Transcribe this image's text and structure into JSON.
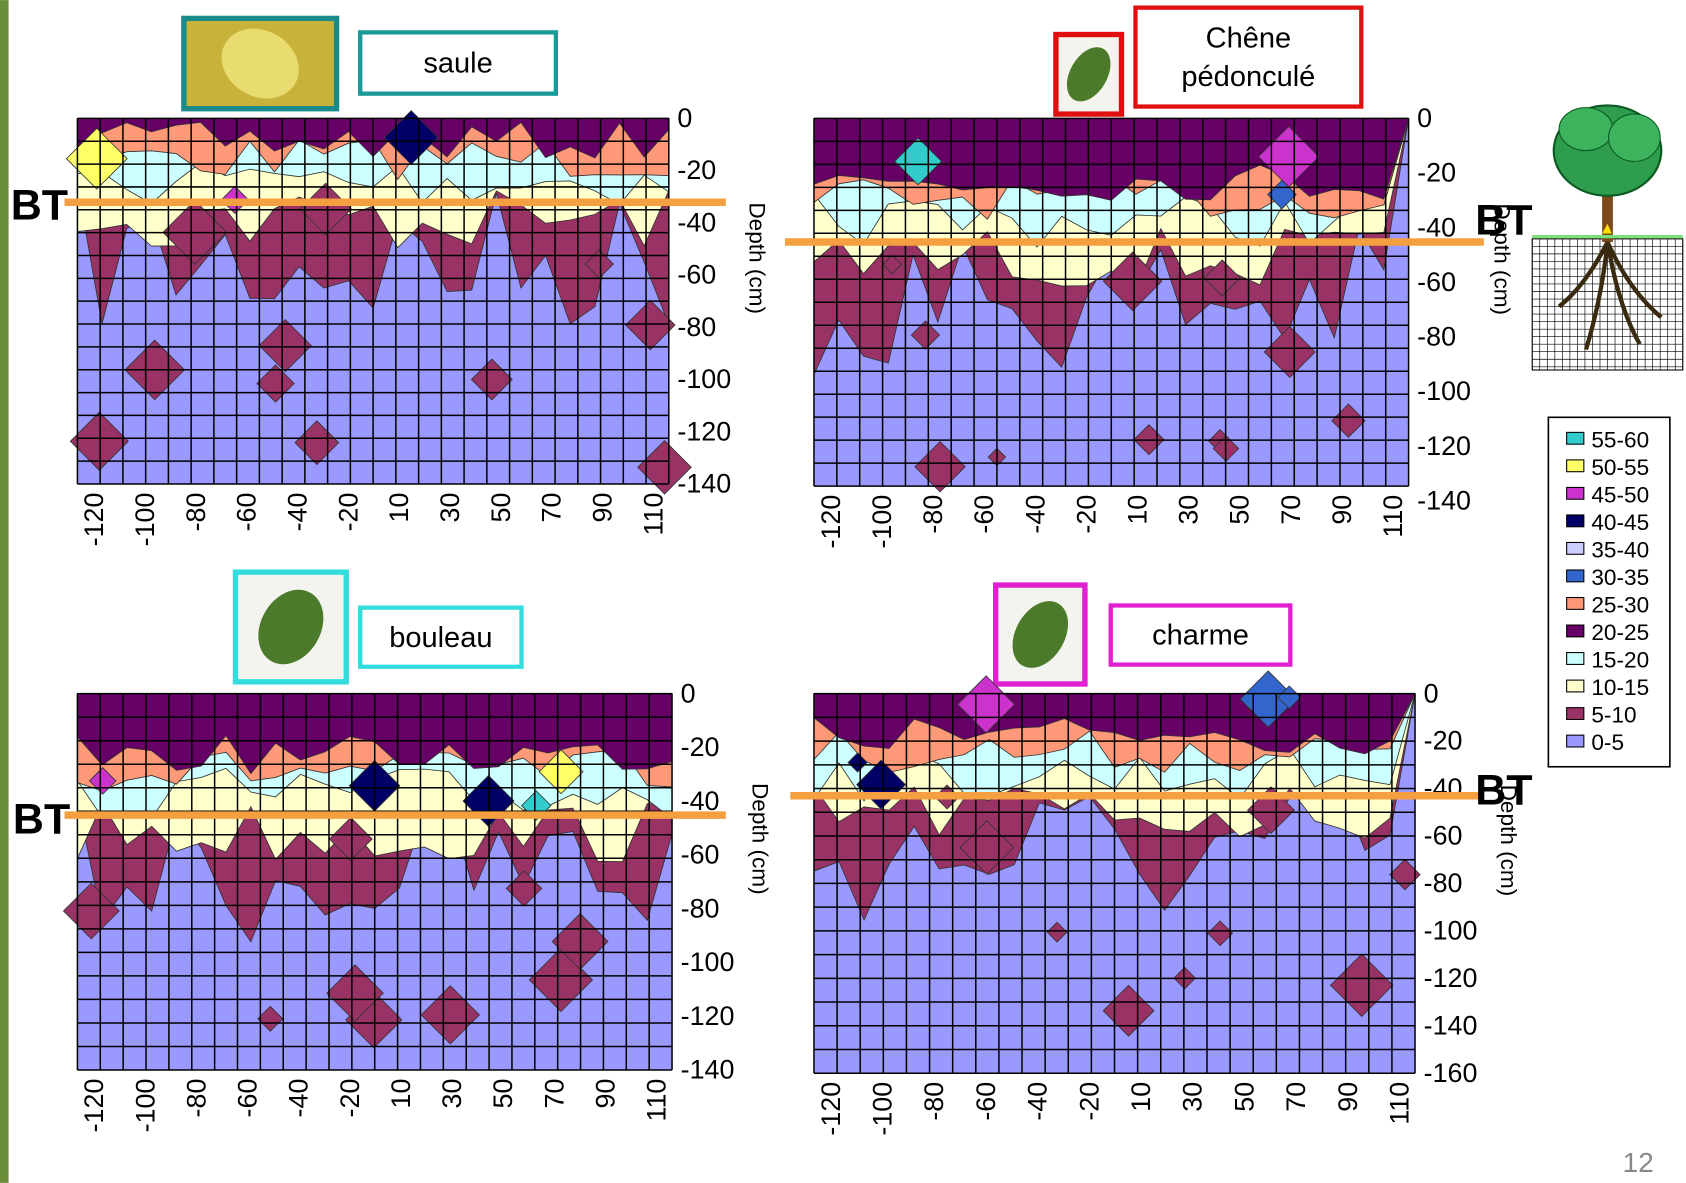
{
  "panels": [
    {
      "species": [
        "saule"
      ],
      "y_axis_label": "Depth (cm)",
      "bt_label": "BT",
      "y_ticks": [
        "0",
        "-20",
        "-40",
        "-60",
        "-80",
        "-100",
        "-120",
        "-140"
      ],
      "x_ticks": [
        "-120",
        "-100",
        "-80",
        "-60",
        "-40",
        "-20",
        "10",
        "30",
        "50",
        "70",
        "90",
        "110"
      ]
    },
    {
      "species": [
        "Chêne",
        "pédonculé"
      ],
      "y_axis_label": "Depth (cm)",
      "bt_label": "BT",
      "y_ticks": [
        "0",
        "-20",
        "-40",
        "-60",
        "-80",
        "-100",
        "-120",
        "-140"
      ],
      "x_ticks": [
        "-120",
        "-100",
        "-80",
        "-60",
        "-40",
        "-20",
        "10",
        "30",
        "50",
        "70",
        "90",
        "110"
      ]
    },
    {
      "species": [
        "bouleau"
      ],
      "y_axis_label": "Depth (cm)",
      "bt_label": "BT",
      "y_ticks": [
        "0",
        "-20",
        "-40",
        "-60",
        "-80",
        "-100",
        "-120",
        "-140"
      ],
      "x_ticks": [
        "-120",
        "-100",
        "-80",
        "-60",
        "-40",
        "-20",
        "10",
        "30",
        "50",
        "70",
        "90",
        "110"
      ]
    },
    {
      "species": [
        "charme"
      ],
      "y_axis_label": "Depth (cm)",
      "bt_label": "BT",
      "y_ticks": [
        "0",
        "-20",
        "-40",
        "-60",
        "-80",
        "-100",
        "-120",
        "-140",
        "-160"
      ],
      "x_ticks": [
        "-120",
        "-100",
        "-80",
        "-60",
        "-40",
        "-20",
        "10",
        "30",
        "50",
        "70",
        "90",
        "110"
      ]
    }
  ],
  "legend": {
    "entries": [
      {
        "label": "55-60",
        "color": "#33cccc"
      },
      {
        "label": "50-55",
        "color": "#ffff66"
      },
      {
        "label": "45-50",
        "color": "#cc33cc"
      },
      {
        "label": "40-45",
        "color": "#000066"
      },
      {
        "label": "35-40",
        "color": "#ccccff"
      },
      {
        "label": "30-35",
        "color": "#3366cc"
      },
      {
        "label": "25-30",
        "color": "#ff9977"
      },
      {
        "label": "20-25",
        "color": "#660066"
      },
      {
        "label": "15-20",
        "color": "#ccffff"
      },
      {
        "label": "10-15",
        "color": "#ffffcc"
      },
      {
        "label": "5-10",
        "color": "#993366"
      },
      {
        "label": "0-5",
        "color": "#9999ff"
      }
    ]
  },
  "page_number": "12"
}
